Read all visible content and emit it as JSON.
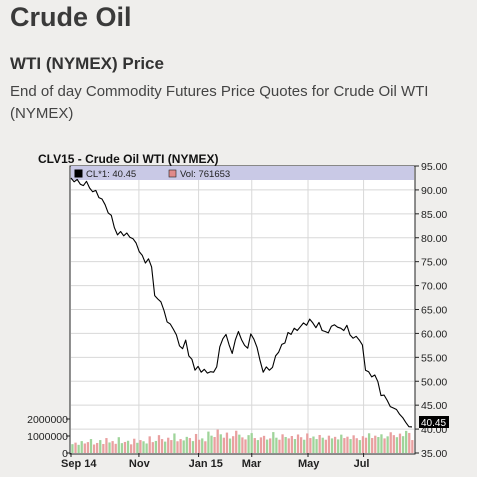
{
  "page": {
    "title": "Crude Oil",
    "section_title": "WTI (NYMEX) Price",
    "description": "End of day Commodity Futures Price Quotes for Crude Oil WTI (NYMEX)"
  },
  "chart_data": {
    "type": "line",
    "title": "CLV15 - Crude Oil WTI (NYMEX)",
    "legend": [
      {
        "label": "CL*1: 40.45",
        "color": "#000000"
      },
      {
        "label": "Vol: 761653",
        "color": "#e08a8a"
      }
    ],
    "last_price_label": "40.45",
    "price_axis": {
      "min": 35,
      "max": 95,
      "ticks": [
        "95.00",
        "90.00",
        "85.00",
        "80.00",
        "75.00",
        "70.00",
        "65.00",
        "60.00",
        "55.00",
        "50.00",
        "45.00",
        "40.00",
        "35.00"
      ],
      "tick_values": [
        95,
        90,
        85,
        80,
        75,
        70,
        65,
        60,
        55,
        50,
        45,
        40,
        35
      ]
    },
    "volume_axis": {
      "max": 3000000,
      "ticks": [
        "2000000",
        "1000000",
        "0"
      ],
      "tick_values": [
        2000000,
        1000000,
        0
      ]
    },
    "x_tick_labels": [
      "Sep 14",
      "Nov",
      "Jan 15",
      "Mar",
      "May",
      "Jul"
    ],
    "x_tick_positions": [
      0.0,
      0.198,
      0.372,
      0.527,
      0.691,
      0.853
    ],
    "grid": true,
    "price_series": [
      92.5,
      91.7,
      92.2,
      91.2,
      90.9,
      91.8,
      90.4,
      89.6,
      89.9,
      88.4,
      88.1,
      86.9,
      85.2,
      84.7,
      82.1,
      80.6,
      81.3,
      80.4,
      81.0,
      80.1,
      79.8,
      78.9,
      77.1,
      76.3,
      74.7,
      75.6,
      73.9,
      67.9,
      67.2,
      66.6,
      64.8,
      62.4,
      62.0,
      60.9,
      59.7,
      57.4,
      56.8,
      58.6,
      55.3,
      54.6,
      52.3,
      53.1,
      51.9,
      52.5,
      51.7,
      52.0,
      51.9,
      53.0,
      57.2,
      58.9,
      59.8,
      57.6,
      55.8,
      58.6,
      60.4,
      58.7,
      57.5,
      56.9,
      59.9,
      58.8,
      57.1,
      54.3,
      51.9,
      53.0,
      52.3,
      52.9,
      55.3,
      56.1,
      57.7,
      58.0,
      60.2,
      59.8,
      61.1,
      60.6,
      61.4,
      62.2,
      61.7,
      63.0,
      62.2,
      61.2,
      62.3,
      60.6,
      60.4,
      60.1,
      61.5,
      61.8,
      61.3,
      61.1,
      60.6,
      61.7,
      59.7,
      59.0,
      59.4,
      58.6,
      57.6,
      52.3,
      52.0,
      50.9,
      51.3,
      49.9,
      47.0,
      47.1,
      46.0,
      44.7,
      44.4,
      44.1,
      43.1,
      42.4,
      41.4,
      40.5,
      40.45
    ],
    "volume_series": [
      520000,
      610000,
      480000,
      700000,
      560000,
      640000,
      820000,
      500000,
      590000,
      760000,
      530000,
      880000,
      620000,
      700000,
      540000,
      930000,
      580000,
      650000,
      720000,
      510000,
      840000,
      600000,
      760000,
      690000,
      560000,
      980000,
      640000,
      710000,
      1050000,
      820000,
      670000,
      900000,
      760000,
      1150000,
      690000,
      820000,
      740000,
      950000,
      880000,
      700000,
      1120000,
      780000,
      860000,
      690000,
      1260000,
      1020000,
      940000,
      1380000,
      1100000,
      900000,
      1200000,
      850000,
      990000,
      1310000,
      1080000,
      920000,
      800000,
      1050000,
      1170000,
      880000,
      760000,
      920000,
      1010000,
      790000,
      860000,
      1230000,
      900000,
      780000,
      1100000,
      940000,
      860000,
      1000000,
      820000,
      1090000,
      930000,
      780000,
      1150000,
      880000,
      970000,
      820000,
      1060000,
      900000,
      780000,
      1020000,
      860000,
      950000,
      800000,
      1080000,
      880000,
      960000,
      820000,
      1040000,
      870000,
      760000,
      990000,
      900000,
      1160000,
      880000,
      1020000,
      940000,
      1100000,
      860000,
      980000,
      1220000,
      1050000,
      930000,
      1140000,
      990000,
      1300000,
      1180000,
      761653
    ]
  }
}
